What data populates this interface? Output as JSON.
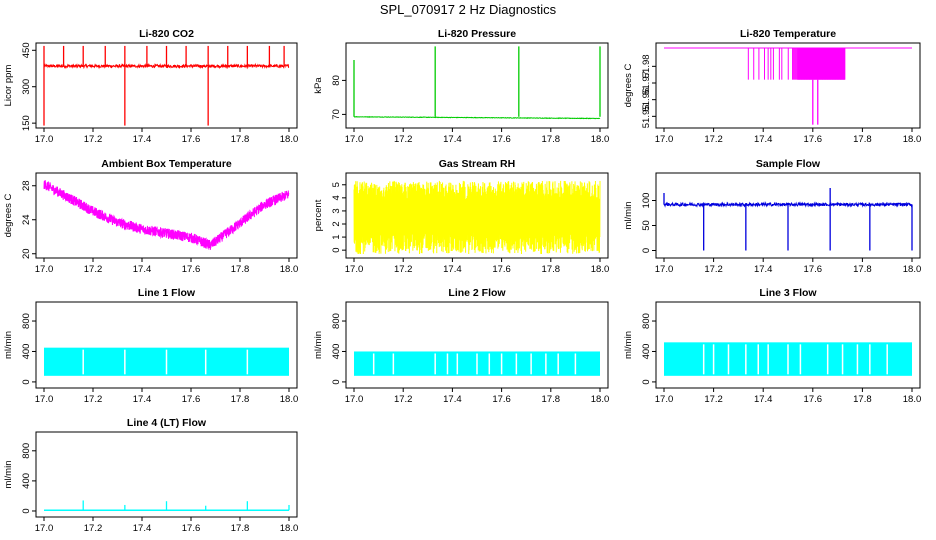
{
  "page": {
    "title": "SPL_070917  2 Hz Diagnostics"
  },
  "chart_data": [
    {
      "id": "co2",
      "type": "line",
      "title": "Li-820 CO2",
      "ylabel": "Licor ppm",
      "xlim": [
        17.0,
        18.0
      ],
      "ylim": [
        130,
        480
      ],
      "yticks": [
        150,
        300,
        450
      ],
      "xticks": [
        17.0,
        17.2,
        17.4,
        17.6,
        17.8,
        18.0
      ],
      "color": "#ff0000",
      "baseline": 385,
      "noise": 6,
      "up_spikes": [
        17.0,
        17.08,
        17.16,
        17.25,
        17.33,
        17.42,
        17.5,
        17.58,
        17.67,
        17.75,
        17.83,
        17.92,
        17.98
      ],
      "spike_high": 468,
      "down_spikes": [
        17.0,
        17.33,
        17.67
      ],
      "spike_low": 140
    },
    {
      "id": "pressure",
      "type": "line",
      "title": "Li-820 Pressure",
      "ylabel": "kPa",
      "xlim": [
        17.0,
        18.0
      ],
      "ylim": [
        66,
        91
      ],
      "yticks": [
        70,
        80
      ],
      "xticks": [
        17.0,
        17.2,
        17.4,
        17.6,
        17.8,
        18.0
      ],
      "color": "#00cc00",
      "start": 69.3,
      "end": 68.8,
      "noise": 0.15,
      "up_spikes": [
        17.0,
        17.33,
        17.67,
        18.0
      ],
      "spike_high": 90
    },
    {
      "id": "licor_temp",
      "type": "line",
      "title": "Li-820 Temperature",
      "ylabel": "degrees C",
      "xlim": [
        17.0,
        18.0
      ],
      "ylim": [
        51.943,
        51.994
      ],
      "yticks": [
        51.95,
        51.96,
        51.97,
        51.98
      ],
      "xticks": [
        17.0,
        17.2,
        17.4,
        17.6,
        17.8,
        18.0
      ],
      "color": "#ff00ff",
      "baseline": 51.991,
      "dip_value": 51.972,
      "dip_region": [
        17.34,
        17.73
      ],
      "deep_dip": 51.945,
      "deep_dip_at": [
        17.6,
        17.62
      ]
    },
    {
      "id": "ambient_temp",
      "type": "line",
      "title": "Ambient Box Temperature",
      "ylabel": "degrees C",
      "xlim": [
        17.0,
        18.0
      ],
      "ylim": [
        19.5,
        29.5
      ],
      "yticks": [
        20,
        24,
        28
      ],
      "xticks": [
        17.0,
        17.2,
        17.4,
        17.6,
        17.8,
        18.0
      ],
      "color": "#ff00ff",
      "curve": [
        [
          17.0,
          28.2
        ],
        [
          17.1,
          26.6
        ],
        [
          17.2,
          25.0
        ],
        [
          17.3,
          23.7
        ],
        [
          17.4,
          22.9
        ],
        [
          17.5,
          22.4
        ],
        [
          17.6,
          21.9
        ],
        [
          17.68,
          21.0
        ],
        [
          17.8,
          23.6
        ],
        [
          17.9,
          25.8
        ],
        [
          18.0,
          27.0
        ]
      ],
      "noise": 1.2
    },
    {
      "id": "rh",
      "type": "line",
      "title": "Gas Stream RH",
      "ylabel": "percent",
      "xlim": [
        17.0,
        18.0
      ],
      "ylim": [
        -0.6,
        5.9
      ],
      "yticks": [
        0,
        1,
        2,
        3,
        4,
        5
      ],
      "xticks": [
        17.0,
        17.2,
        17.4,
        17.6,
        17.8,
        18.0
      ],
      "color": "#ffff00",
      "band_low": -0.3,
      "band_high": 5.3
    },
    {
      "id": "sample_flow",
      "type": "line",
      "title": "Sample Flow",
      "ylabel": "ml/min",
      "xlim": [
        17.0,
        18.0
      ],
      "ylim": [
        -15,
        155
      ],
      "yticks": [
        0,
        50,
        100
      ],
      "xticks": [
        17.0,
        17.2,
        17.4,
        17.6,
        17.8,
        18.0
      ],
      "color": "#0000dd",
      "baseline": 92,
      "noise": 3,
      "down_spikes": [
        17.16,
        17.33,
        17.5,
        17.67,
        17.83,
        18.0
      ],
      "spike_low": 0,
      "up_spike": [
        17.67,
        125
      ]
    },
    {
      "id": "line1",
      "type": "line",
      "title": "Line 1 Flow",
      "ylabel": "ml/min",
      "xlim": [
        17.0,
        18.0
      ],
      "ylim": [
        -80,
        1050
      ],
      "yticks": [
        0,
        400,
        800
      ],
      "xticks": [
        17.0,
        17.2,
        17.4,
        17.6,
        17.8,
        18.0
      ],
      "color": "#00ffff",
      "band_low": 80,
      "band_high": 450,
      "gaps": [
        17.16,
        17.33,
        17.5,
        17.66,
        17.83
      ]
    },
    {
      "id": "line2",
      "type": "line",
      "title": "Line 2 Flow",
      "ylabel": "ml/min",
      "xlim": [
        17.0,
        18.0
      ],
      "ylim": [
        -80,
        1050
      ],
      "yticks": [
        0,
        400,
        800
      ],
      "xticks": [
        17.0,
        17.2,
        17.4,
        17.6,
        17.8,
        18.0
      ],
      "color": "#00ffff",
      "band_low": 80,
      "band_high": 400,
      "gaps": [
        17.08,
        17.16,
        17.33,
        17.38,
        17.42,
        17.5,
        17.55,
        17.6,
        17.66,
        17.72,
        17.78,
        17.83,
        17.9
      ]
    },
    {
      "id": "line3",
      "type": "line",
      "title": "Line 3 Flow",
      "ylabel": "ml/min",
      "xlim": [
        17.0,
        18.0
      ],
      "ylim": [
        -80,
        1050
      ],
      "yticks": [
        0,
        400,
        800
      ],
      "xticks": [
        17.0,
        17.2,
        17.4,
        17.6,
        17.8,
        18.0
      ],
      "color": "#00ffff",
      "band_low": 80,
      "band_high": 520,
      "gaps": [
        17.16,
        17.2,
        17.26,
        17.33,
        17.38,
        17.42,
        17.5,
        17.55,
        17.66,
        17.72,
        17.78,
        17.83,
        17.9
      ]
    },
    {
      "id": "line4",
      "type": "line",
      "title": "Line 4 (LT) Flow",
      "ylabel": "ml/min",
      "xlim": [
        17.0,
        18.0
      ],
      "ylim": [
        -80,
        1050
      ],
      "yticks": [
        0,
        400,
        800
      ],
      "xticks": [
        17.0,
        17.2,
        17.4,
        17.6,
        17.8,
        18.0
      ],
      "color": "#00ffff",
      "baseline": 10,
      "spikes": [
        [
          17.16,
          140
        ],
        [
          17.33,
          80
        ],
        [
          17.5,
          130
        ],
        [
          17.66,
          70
        ],
        [
          17.83,
          130
        ],
        [
          18.0,
          80
        ]
      ]
    }
  ]
}
